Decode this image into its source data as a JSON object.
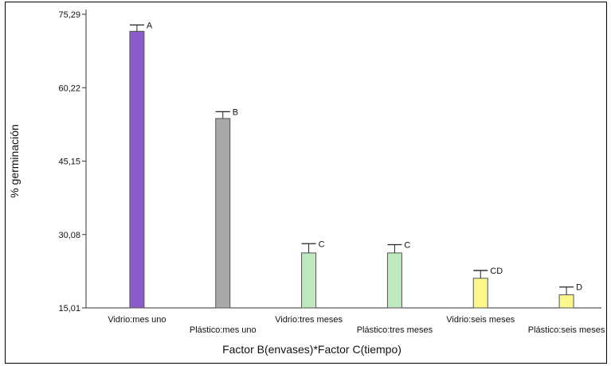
{
  "chart_data": {
    "type": "bar",
    "xlabel": "Factor B(envases)*Factor C(tiempo)",
    "ylabel": "% germinación",
    "ylim": [
      15.01,
      75.29
    ],
    "yticks": [
      "15,01",
      "30,08",
      "45,15",
      "60,22",
      "75,29"
    ],
    "ytick_values": [
      15.01,
      30.08,
      45.15,
      60.22,
      75.29
    ],
    "grid": false,
    "legend": "none",
    "categories": [
      "Vidrio:mes uno",
      "Plástico:mes uno",
      "Vidrio:tres meses",
      "Plástico:tres meses",
      "Vidrio:seis meses",
      "Plástico:seis meses"
    ],
    "values": [
      71.8,
      53.9,
      26.3,
      26.3,
      21.1,
      17.7
    ],
    "error": [
      1.3,
      1.4,
      1.9,
      1.7,
      1.6,
      1.6
    ],
    "group_labels": [
      "A",
      "B",
      "C",
      "C",
      "CD",
      "D"
    ],
    "colors": [
      "#8b5cc9",
      "#a9a9a9",
      "#bfe8bf",
      "#bfe8bf",
      "#fbf78a",
      "#fbf78a"
    ]
  }
}
